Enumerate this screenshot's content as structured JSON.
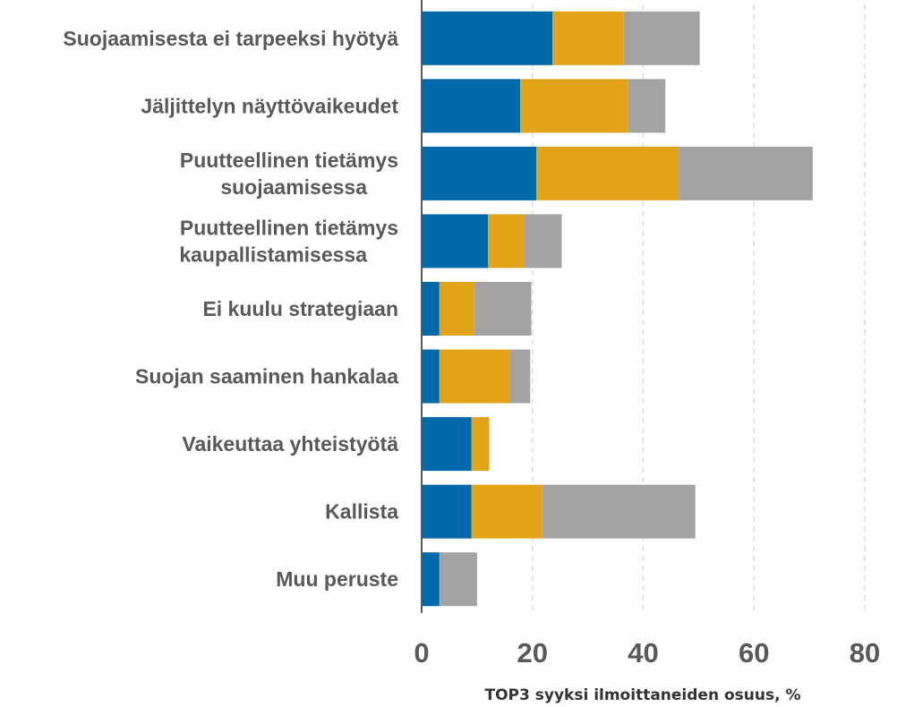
{
  "chart_data": {
    "type": "bar",
    "orientation": "horizontal",
    "stacked": true,
    "categories": [
      "Suojaamisesta ei tarpeeksi hyötyä",
      "Jäljittelyn näyttövaikeudet",
      "Puutteellinen tietämys\nsuojaamisessa",
      "Puutteellinen tietämys\nkaupallistamisessa",
      "Ei kuulu strategiaan",
      "Suojan saaminen hankalaa",
      "Vaikeuttaa yhteistyötä",
      "Kallista",
      "Muu peruste"
    ],
    "series": [
      {
        "color": "#0069aa",
        "values": [
          23.6,
          17.8,
          20.7,
          12.0,
          3.2,
          3.2,
          9.0,
          9.0,
          3.2
        ]
      },
      {
        "color": "#e2a319",
        "values": [
          12.9,
          19.4,
          25.7,
          6.5,
          6.3,
          12.8,
          3.2,
          12.8,
          0
        ]
      },
      {
        "color": "#a3a3a3",
        "values": [
          13.7,
          6.8,
          24.2,
          6.8,
          10.3,
          3.6,
          0,
          27.6,
          6.8
        ]
      }
    ],
    "xlim": [
      0,
      80
    ],
    "xticks": [
      0,
      20,
      40,
      60,
      80
    ],
    "grid": true,
    "x_label": "TOP3 syyksi ilmoittaneiden osuus, %"
  }
}
